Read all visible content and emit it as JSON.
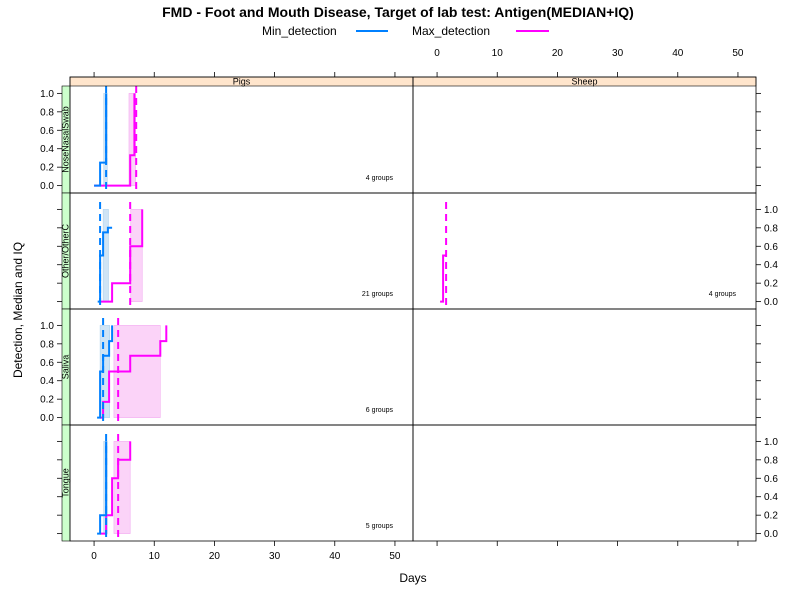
{
  "chart_data": {
    "type": "line",
    "title": "FMD - Foot and Mouth Disease, Target of lab test: Antigen(MEDIAN+IQ)",
    "xlabel": "Days",
    "ylabel": "Detection, Median and IQ",
    "xlim": [
      -4,
      53
    ],
    "ylim": [
      -0.08,
      1.08
    ],
    "x_ticks": [
      0,
      10,
      20,
      30,
      40,
      50
    ],
    "y_ticks": [
      0.0,
      0.2,
      0.4,
      0.6,
      0.8,
      1.0
    ],
    "grid": false,
    "legend": {
      "placement": "top",
      "entries": [
        {
          "name": "Min_detection",
          "color": "#0080ff"
        },
        {
          "name": "Max_detection",
          "color": "#ff00ff"
        }
      ]
    },
    "columns": [
      "Pigs",
      "Sheep"
    ],
    "rows": [
      "NoseNasalSwab",
      "Other/OtherC",
      "Saliva",
      "Tongue"
    ],
    "colors": {
      "min": "#0080ff",
      "max": "#ff00ff",
      "min_band": "#cfe4f5",
      "max_band": "#fbd3f8",
      "strip_top": "#ffe5cc",
      "strip_side": "#ccffcc"
    },
    "panels": [
      {
        "column": "Pigs",
        "row": "NoseNasalSwab",
        "groups_label": "4 groups",
        "min_median_day": 2,
        "min_steps": [
          [
            0,
            0
          ],
          [
            1,
            0
          ],
          [
            1,
            0.25
          ],
          [
            2,
            0.25
          ],
          [
            2,
            1.0
          ]
        ],
        "min_iq": [
          1.6,
          2.2
        ],
        "max_median_day": 7,
        "max_steps": [
          [
            0,
            0
          ],
          [
            6,
            0
          ],
          [
            6,
            0.33
          ],
          [
            6.7,
            0.33
          ],
          [
            6.7,
            1.0
          ]
        ],
        "max_iq": [
          5.8,
          6.9
        ]
      },
      {
        "column": "Pigs",
        "row": "Other/OtherC",
        "groups_label": "21 groups",
        "min_median_day": 1,
        "min_steps": [
          [
            0.6,
            0
          ],
          [
            1,
            0
          ],
          [
            1,
            0.5
          ],
          [
            1.5,
            0.5
          ],
          [
            1.5,
            0.75
          ],
          [
            2.3,
            0.75
          ],
          [
            2.3,
            0.8
          ],
          [
            3,
            0.8
          ]
        ],
        "min_iq": [
          1.5,
          2.4
        ],
        "max_median_day": 6,
        "max_steps": [
          [
            1,
            0
          ],
          [
            3,
            0
          ],
          [
            3,
            0.2
          ],
          [
            6,
            0.2
          ],
          [
            6,
            0.6
          ],
          [
            8,
            0.6
          ],
          [
            8,
            1.0
          ]
        ],
        "max_iq": [
          6.1,
          8
        ]
      },
      {
        "column": "Pigs",
        "row": "Saliva",
        "groups_label": "6 groups",
        "min_median_day": 1.5,
        "min_steps": [
          [
            0.5,
            0
          ],
          [
            1,
            0
          ],
          [
            1,
            0.5
          ],
          [
            1.5,
            0.5
          ],
          [
            1.5,
            0.67
          ],
          [
            2.5,
            0.67
          ],
          [
            2.5,
            0.83
          ],
          [
            3,
            0.83
          ],
          [
            3,
            1.0
          ]
        ],
        "min_iq": [
          1,
          2.6
        ],
        "max_median_day": 4,
        "max_steps": [
          [
            1,
            0
          ],
          [
            1.5,
            0
          ],
          [
            1.5,
            0.17
          ],
          [
            2.5,
            0.17
          ],
          [
            2.5,
            0.5
          ],
          [
            4,
            0.5
          ],
          [
            4,
            0.5
          ],
          [
            6,
            0.5
          ],
          [
            6,
            0.67
          ],
          [
            11,
            0.67
          ],
          [
            11,
            0.83
          ],
          [
            12,
            0.83
          ],
          [
            12,
            1.0
          ]
        ],
        "max_iq": [
          3.3,
          11
        ]
      },
      {
        "column": "Pigs",
        "row": "Tongue",
        "groups_label": "5 groups",
        "min_median_day": 2,
        "min_steps": [
          [
            0.5,
            0
          ],
          [
            1,
            0
          ],
          [
            1,
            0.2
          ],
          [
            2,
            0.2
          ],
          [
            2,
            1.0
          ]
        ],
        "min_iq": [
          1.6,
          2.2
        ],
        "max_median_day": 4,
        "max_steps": [
          [
            1,
            0
          ],
          [
            2,
            0
          ],
          [
            2,
            0.2
          ],
          [
            3,
            0.2
          ],
          [
            3,
            0.6
          ],
          [
            4,
            0.6
          ],
          [
            4,
            0.8
          ],
          [
            6,
            0.8
          ],
          [
            6,
            1.0
          ]
        ],
        "max_iq": [
          3.3,
          6
        ]
      },
      {
        "column": "Sheep",
        "row": "Other/OtherC",
        "groups_label": "4 groups",
        "min_median_day": null,
        "min_steps": [],
        "min_iq": null,
        "max_median_day": 1.5,
        "max_steps": [
          [
            0.5,
            0
          ],
          [
            1,
            0
          ],
          [
            1,
            0.5
          ],
          [
            1.5,
            0.5
          ]
        ],
        "max_iq": null
      }
    ]
  }
}
